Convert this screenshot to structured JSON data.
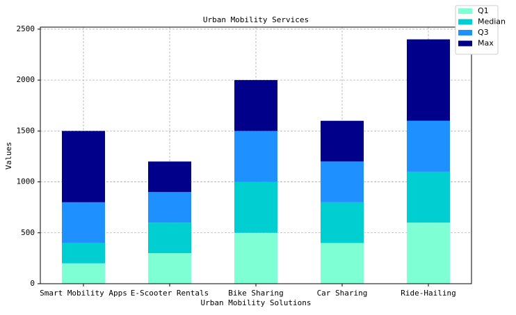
{
  "chart_data": {
    "type": "stacked_bar",
    "title": "Urban Mobility Services",
    "x_label": "Urban Mobility Solutions",
    "y_label": "Values",
    "categories": [
      "Smart Mobility Apps",
      "E-Scooter Rentals",
      "Bike Sharing",
      "Car Sharing",
      "Ride-Hailing"
    ],
    "series": [
      {
        "name": "Q1",
        "color": "#7fffd4",
        "values": [
          200,
          300,
          500,
          400,
          600
        ]
      },
      {
        "name": "Median",
        "color": "#00ced1",
        "values": [
          200,
          300,
          500,
          400,
          500
        ]
      },
      {
        "name": "Q3",
        "color": "#1e90ff",
        "values": [
          400,
          300,
          500,
          400,
          500
        ]
      },
      {
        "name": "Max",
        "color": "#00008b",
        "values": [
          700,
          300,
          500,
          400,
          800
        ]
      }
    ],
    "ylim": [
      0,
      2520
    ],
    "yticks": [
      0,
      500,
      1000,
      1500,
      2000,
      2500
    ],
    "grid": true,
    "legend": "upper right"
  }
}
